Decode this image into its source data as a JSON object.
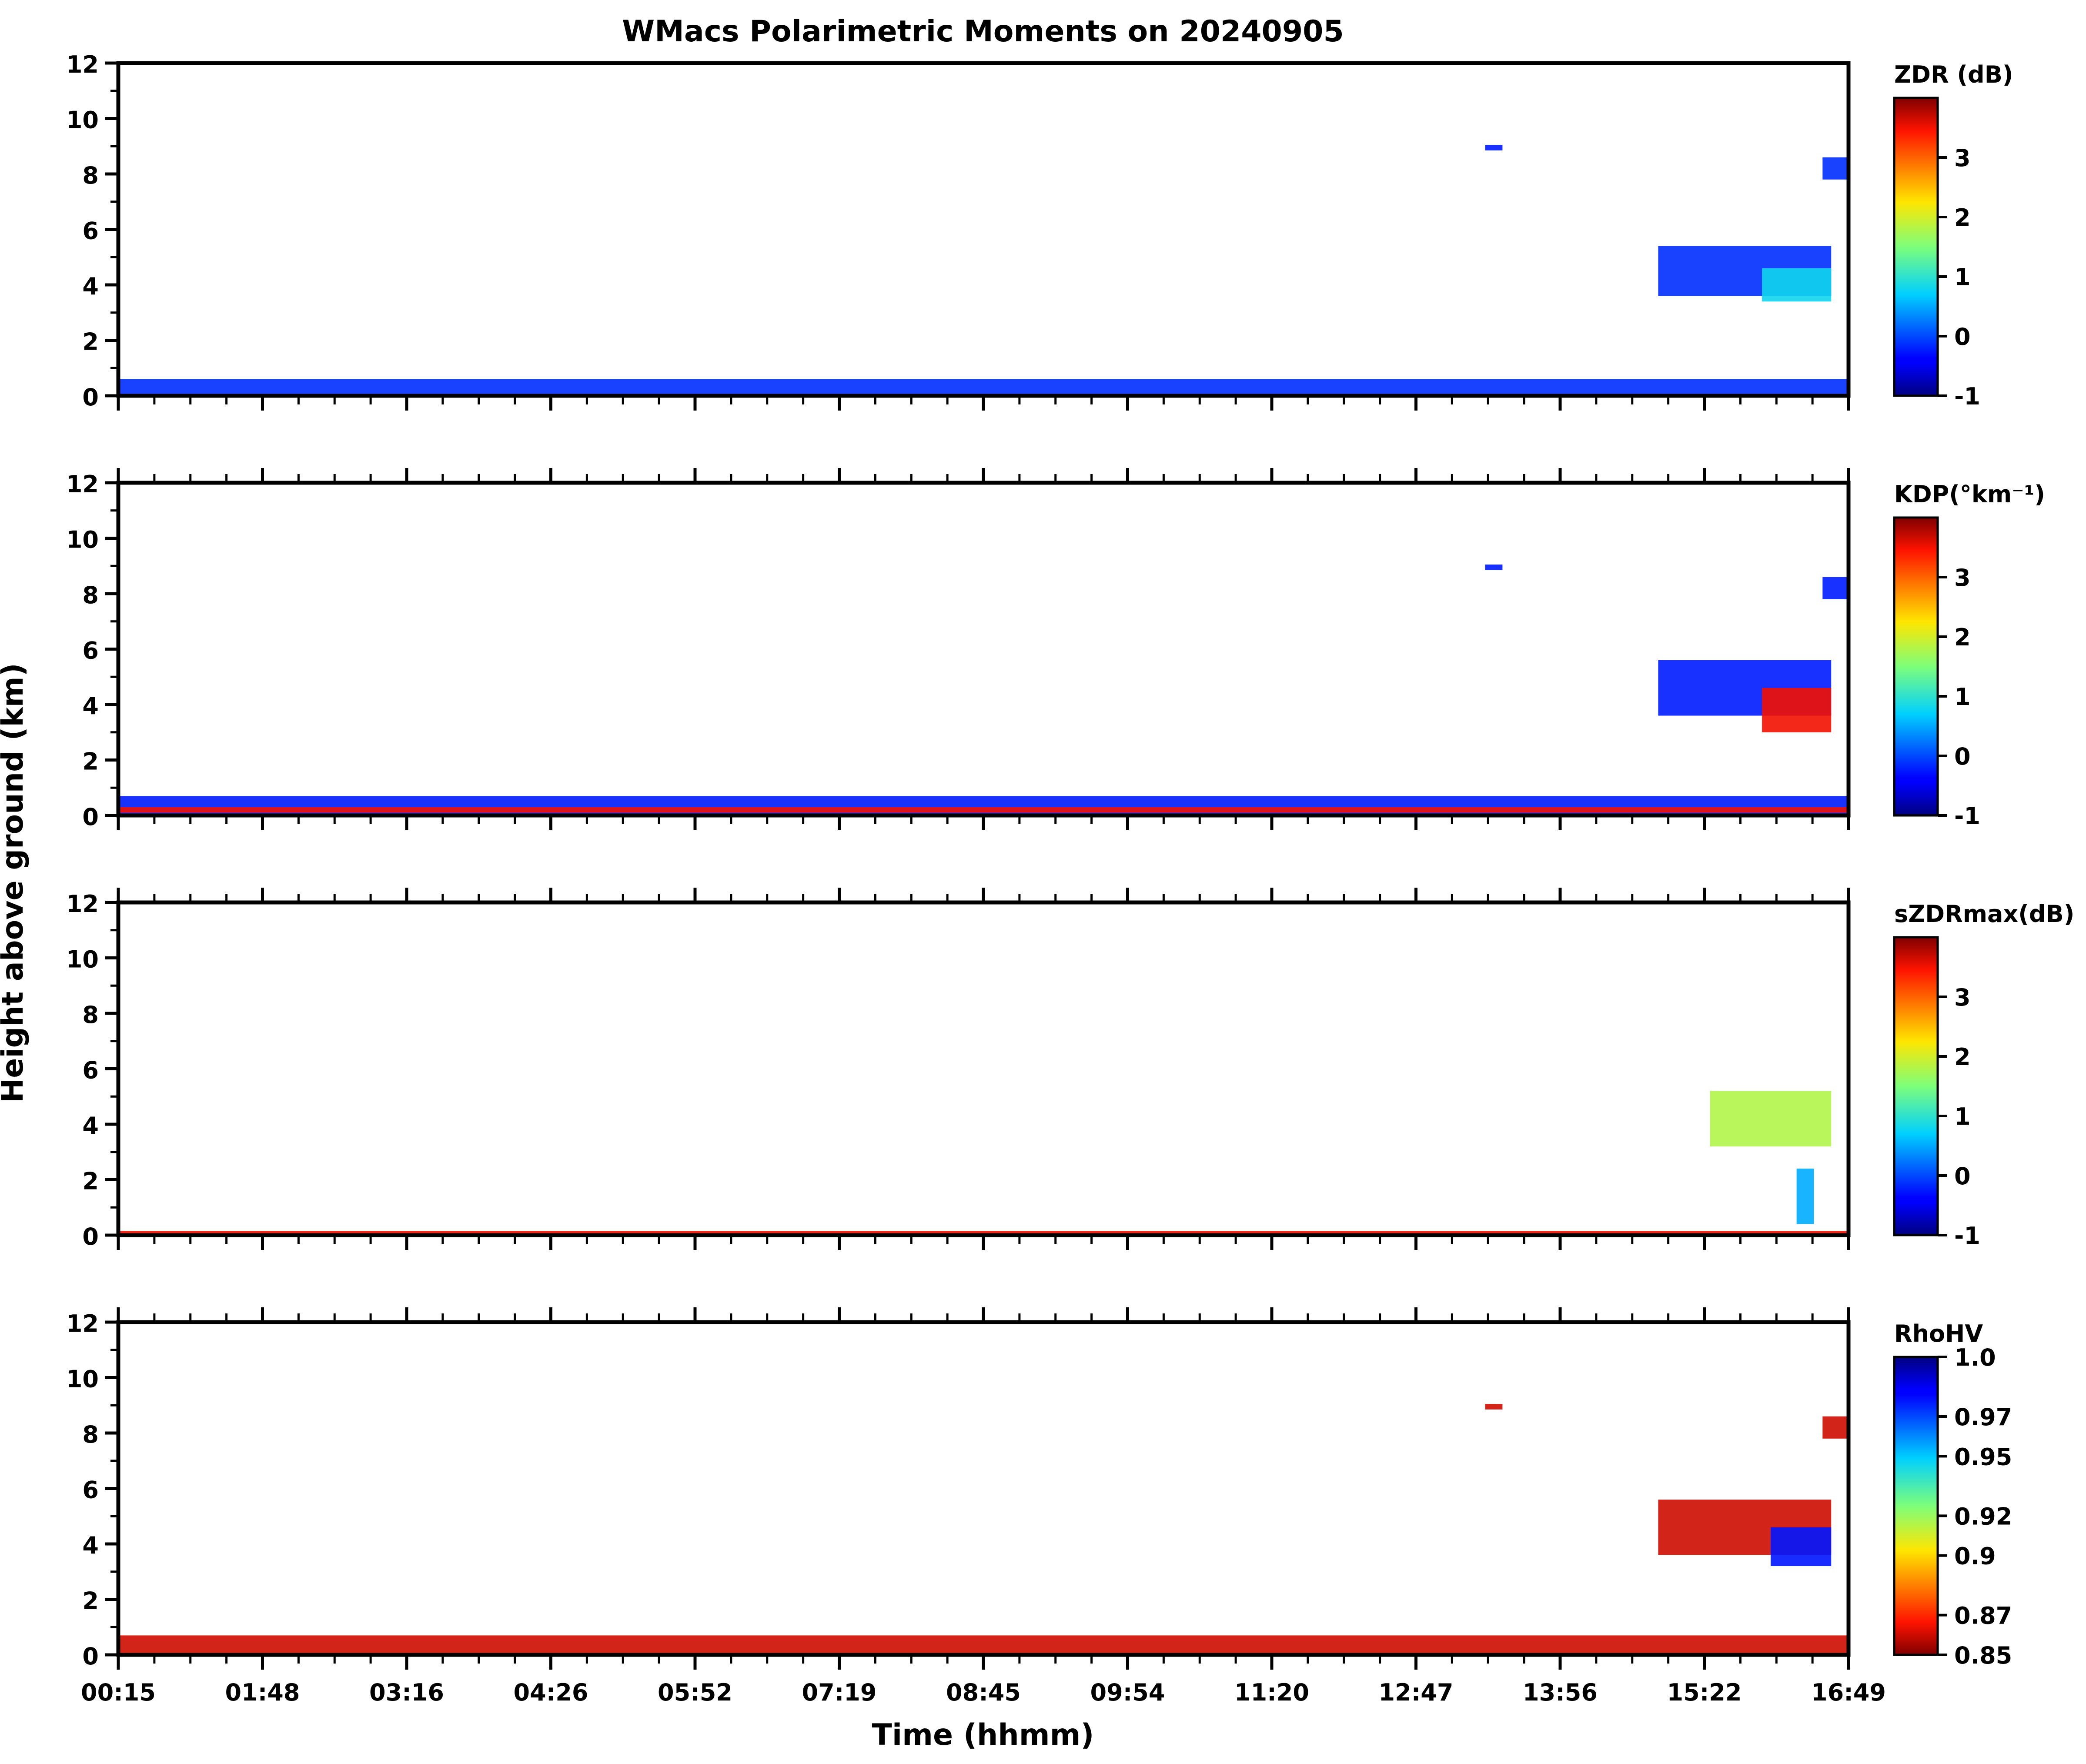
{
  "chart_data": {
    "title": "WMacs Polarimetric Moments on 20240905",
    "xlabel": "Time (hhmm)",
    "ylabel": "Height above ground (km)",
    "time_ticks": [
      "00:15",
      "01:48",
      "03:16",
      "04:26",
      "05:52",
      "07:19",
      "08:45",
      "09:54",
      "11:20",
      "12:47",
      "13:56",
      "15:22",
      "16:49"
    ],
    "ylim": [
      0,
      12
    ],
    "y_ticks": [
      "0",
      "2",
      "4",
      "6",
      "8",
      "10",
      "12"
    ],
    "panels": [
      {
        "type": "heatmap",
        "label": "ZDR (dB)",
        "colormap": "jet",
        "vmin": -1,
        "vmax": 4,
        "colorbar_ticks": [
          "-1",
          "0",
          "1",
          "2",
          "3"
        ],
        "dominant_color": "#1f5bff",
        "features": [
          {
            "t": [
              0.0,
              1.0
            ],
            "h": [
              0.0,
              0.6
            ],
            "v": -0.2
          },
          {
            "t": [
              0.79,
              0.8
            ],
            "h": [
              8.85,
              9.05
            ],
            "v": -0.3
          },
          {
            "t": [
              0.89,
              0.99
            ],
            "h": [
              3.6,
              5.4
            ],
            "v": -0.2
          },
          {
            "t": [
              0.95,
              0.99
            ],
            "h": [
              3.4,
              4.6
            ],
            "v": 0.8
          },
          {
            "t": [
              0.985,
              1.0
            ],
            "h": [
              7.8,
              8.6
            ],
            "v": -0.2
          }
        ]
      },
      {
        "type": "heatmap",
        "label": "KDP(°km⁻¹)",
        "colormap": "jet",
        "vmin": -1,
        "vmax": 4,
        "colorbar_ticks": [
          "-1",
          "0",
          "1",
          "2",
          "3"
        ],
        "dominant_color": "#1f5bff",
        "features": [
          {
            "t": [
              0.0,
              1.0
            ],
            "h": [
              0.0,
              0.7
            ],
            "v": -0.3
          },
          {
            "t": [
              0.0,
              1.0
            ],
            "h": [
              0.1,
              0.3
            ],
            "v": 3.5
          },
          {
            "t": [
              0.79,
              0.8
            ],
            "h": [
              8.85,
              9.05
            ],
            "v": -0.3
          },
          {
            "t": [
              0.89,
              0.99
            ],
            "h": [
              3.6,
              5.6
            ],
            "v": -0.3
          },
          {
            "t": [
              0.95,
              0.99
            ],
            "h": [
              3.0,
              4.6
            ],
            "v": 3.5
          },
          {
            "t": [
              0.985,
              1.0
            ],
            "h": [
              7.8,
              8.6
            ],
            "v": -0.3
          }
        ]
      },
      {
        "type": "heatmap",
        "label": "sZDRmax(dB)",
        "colormap": "jet",
        "vmin": -1,
        "vmax": 4,
        "colorbar_ticks": [
          "-1",
          "0",
          "1",
          "2",
          "3"
        ],
        "dominant_color": "#c8f050",
        "features": [
          {
            "t": [
              0.0,
              1.0
            ],
            "h": [
              0.0,
              0.15
            ],
            "v": 3.5
          },
          {
            "t": [
              0.92,
              0.99
            ],
            "h": [
              3.2,
              5.2
            ],
            "v": 1.8
          },
          {
            "t": [
              0.97,
              0.98
            ],
            "h": [
              0.4,
              2.4
            ],
            "v": 0.5
          }
        ]
      },
      {
        "type": "heatmap",
        "label": "RhoHV",
        "colormap": "jet_r",
        "vmin": 0.85,
        "vmax": 1.0,
        "colorbar_ticks": [
          "0.85",
          "0.87",
          "0.9",
          "0.92",
          "0.95",
          "0.97",
          "1.0"
        ],
        "dominant_color": "#8b0000",
        "features": [
          {
            "t": [
              0.0,
              1.0
            ],
            "h": [
              0.0,
              0.7
            ],
            "v": 0.86
          },
          {
            "t": [
              0.79,
              0.8
            ],
            "h": [
              8.85,
              9.05
            ],
            "v": 0.86
          },
          {
            "t": [
              0.89,
              0.99
            ],
            "h": [
              3.6,
              5.6
            ],
            "v": 0.86
          },
          {
            "t": [
              0.955,
              0.99
            ],
            "h": [
              3.2,
              4.6
            ],
            "v": 0.98
          },
          {
            "t": [
              0.985,
              1.0
            ],
            "h": [
              7.8,
              8.6
            ],
            "v": 0.86
          }
        ]
      }
    ]
  }
}
